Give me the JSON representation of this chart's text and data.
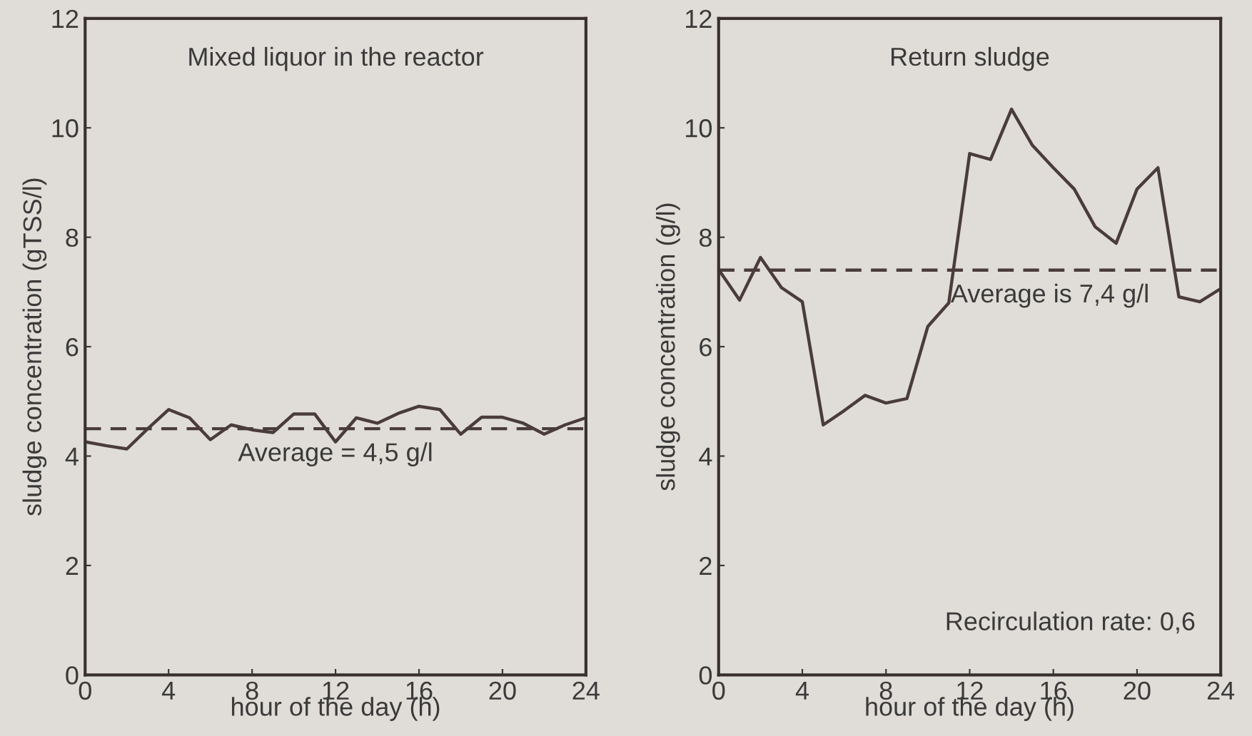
{
  "chart_data": [
    {
      "type": "line",
      "title": "Mixed liquor in the reactor",
      "xlabel": "hour of the day (h)",
      "ylabel": "sludge concentration (gTSS/l)",
      "x": [
        0,
        1,
        2,
        3,
        4,
        5,
        6,
        7,
        8,
        9,
        10,
        11,
        12,
        13,
        14,
        15,
        16,
        17,
        18,
        19,
        20,
        21,
        22,
        23,
        24
      ],
      "series": [
        {
          "color": "#4a3c3c",
          "values": [
            4.26,
            4.19,
            4.13,
            4.5,
            4.85,
            4.7,
            4.3,
            4.57,
            4.48,
            4.43,
            4.77,
            4.77,
            4.26,
            4.7,
            4.6,
            4.78,
            4.91,
            4.85,
            4.4,
            4.71,
            4.71,
            4.6,
            4.4,
            4.57,
            4.7
          ]
        }
      ],
      "xlim": [
        0,
        24
      ],
      "ylim": [
        0,
        12
      ],
      "xticks": [
        0,
        4,
        8,
        12,
        16,
        20,
        24
      ],
      "yticks": [
        0,
        2,
        4,
        6,
        8,
        10,
        12
      ],
      "ref_lines": [
        {
          "axis": "y",
          "value": 4.5,
          "label": "Average = 4,5 g/l",
          "color": "#4a3c3c",
          "line_style": "dashed"
        }
      ],
      "grid": false,
      "legend": false
    },
    {
      "type": "line",
      "title": "Return sludge",
      "xlabel": "hour of the day (h)",
      "ylabel": "sludge concentration (g/l)",
      "x": [
        0,
        1,
        2,
        3,
        4,
        5,
        6,
        7,
        8,
        9,
        10,
        11,
        12,
        13,
        14,
        15,
        16,
        17,
        18,
        19,
        20,
        21,
        22,
        23,
        24
      ],
      "series": [
        {
          "color": "#4a3c3c",
          "values": [
            7.41,
            6.85,
            7.63,
            7.08,
            6.82,
            4.57,
            4.83,
            5.11,
            4.97,
            5.05,
            6.37,
            6.8,
            9.53,
            9.42,
            10.34,
            9.68,
            9.27,
            8.88,
            8.19,
            7.89,
            8.88,
            9.27,
            6.91,
            6.82,
            7.06
          ]
        }
      ],
      "xlim": [
        0,
        24
      ],
      "ylim": [
        0,
        12
      ],
      "xticks": [
        0,
        4,
        8,
        12,
        16,
        20,
        24
      ],
      "yticks": [
        0,
        2,
        4,
        6,
        8,
        10,
        12
      ],
      "ref_lines": [
        {
          "axis": "y",
          "value": 7.4,
          "label": "Average is 7,4 g/l",
          "color": "#4a3c3c",
          "line_style": "dashed"
        }
      ],
      "annotations": [
        "Recirculation rate: 0,6"
      ],
      "grid": false,
      "legend": false
    }
  ]
}
